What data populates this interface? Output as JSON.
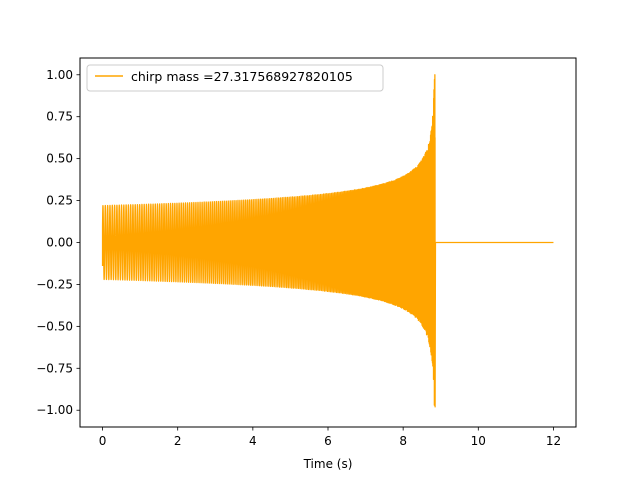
{
  "chart_data": {
    "type": "line",
    "title": "",
    "xlabel": "Time (s)",
    "ylabel": "",
    "xlim": [
      -0.6,
      12.6
    ],
    "ylim": [
      -1.1,
      1.1
    ],
    "xticks": [
      0,
      2,
      4,
      6,
      8,
      10,
      12
    ],
    "xtick_labels": [
      "0",
      "2",
      "4",
      "6",
      "8",
      "10",
      "12"
    ],
    "yticks": [
      -1.0,
      -0.75,
      -0.5,
      -0.25,
      0.0,
      0.25,
      0.5,
      0.75,
      1.0
    ],
    "ytick_labels": [
      "−1.00",
      "−0.75",
      "−0.50",
      "−0.25",
      "0.00",
      "0.25",
      "0.50",
      "0.75",
      "1.00"
    ],
    "grid": false,
    "legend_position": "top-left",
    "series": [
      {
        "name": "chirp mass =27.317568927820105",
        "color": "#ffa500",
        "signal": {
          "kind": "inspiral chirp",
          "start_time": 0.0,
          "merger_time": 8.85,
          "end_time": 12.0,
          "initial_amplitude": 0.22,
          "peak_amplitude": 1.0,
          "min_value": -0.98,
          "post_merger_value": 0.0,
          "initial_frequency_hz": 16
        }
      }
    ]
  }
}
